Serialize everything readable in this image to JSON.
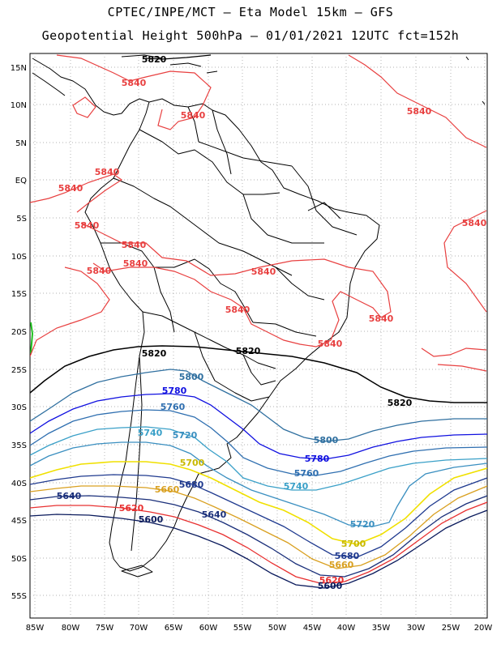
{
  "header": {
    "line1": "CPTEC/INPE/MCT –  Eta Model 15km – GFS",
    "line2": "Geopotential Height 500hPa – 01/01/2021 12UTC fct=152h"
  },
  "axes": {
    "lat_labels": [
      "15N",
      "10N",
      "5N",
      "EQ",
      "5S",
      "10S",
      "15S",
      "20S",
      "25S",
      "30S",
      "35S",
      "40S",
      "45S",
      "50S",
      "55S"
    ],
    "lon_labels": [
      "85W",
      "80W",
      "75W",
      "70W",
      "65W",
      "60W",
      "55W",
      "50W",
      "45W",
      "40W",
      "35W",
      "30W",
      "25W",
      "20W"
    ]
  },
  "colors": {
    "c5600": "#0a1a5c",
    "c5620": "#e83030",
    "c5640": "#1a2f7a",
    "c5660": "#d9a020",
    "c5680": "#1f3a8f",
    "c5700": "#f0e000",
    "c5720": "#3a8fc0",
    "c5740": "#3aa0c8",
    "c5760": "#2f6fb0",
    "c5780": "#1010e0",
    "c5800": "#3070a0",
    "c5820": "#000000",
    "c5840": "#e84040"
  },
  "contour_labels": [
    {
      "id": "l5820a",
      "text": "5820"
    },
    {
      "id": "l5840a",
      "text": "5840"
    },
    {
      "id": "l5840b",
      "text": "5840"
    },
    {
      "id": "l5840c",
      "text": "5840"
    },
    {
      "id": "l5840d",
      "text": "5840"
    },
    {
      "id": "l5840e",
      "text": "5840"
    },
    {
      "id": "l5840f",
      "text": "5840"
    },
    {
      "id": "l5840g",
      "text": "5840"
    },
    {
      "id": "l5840h",
      "text": "5840"
    },
    {
      "id": "l5840i",
      "text": "5840"
    },
    {
      "id": "l5840j",
      "text": "5840"
    },
    {
      "id": "l5840k",
      "text": "5840"
    },
    {
      "id": "l5840l",
      "text": "5840"
    },
    {
      "id": "l5840m",
      "text": "5840"
    },
    {
      "id": "l5840n",
      "text": "5840"
    },
    {
      "id": "l5820b",
      "text": "5820"
    },
    {
      "id": "l5820c",
      "text": "5820"
    },
    {
      "id": "l5820d",
      "text": "5820"
    },
    {
      "id": "l5800a",
      "text": "5800"
    },
    {
      "id": "l5800b",
      "text": "5800"
    },
    {
      "id": "l5780a",
      "text": "5780"
    },
    {
      "id": "l5780b",
      "text": "5780"
    },
    {
      "id": "l5760a",
      "text": "5760"
    },
    {
      "id": "l5760b",
      "text": "5760"
    },
    {
      "id": "l5740a",
      "text": "5740"
    },
    {
      "id": "l5740b",
      "text": "5740"
    },
    {
      "id": "l5720a",
      "text": "5720"
    },
    {
      "id": "l5720b",
      "text": "5720"
    },
    {
      "id": "l5700a",
      "text": "5700"
    },
    {
      "id": "l5700b",
      "text": "5700"
    },
    {
      "id": "l5680a",
      "text": "5680"
    },
    {
      "id": "l5680b",
      "text": "5680"
    },
    {
      "id": "l5660a",
      "text": "5660"
    },
    {
      "id": "l5660b",
      "text": "5660"
    },
    {
      "id": "l5640a",
      "text": "5640"
    },
    {
      "id": "l5640b",
      "text": "5640"
    },
    {
      "id": "l5620a",
      "text": "5620"
    },
    {
      "id": "l5620b",
      "text": "5620"
    },
    {
      "id": "l5600a",
      "text": "5600"
    },
    {
      "id": "l5600b",
      "text": "5600"
    }
  ]
}
